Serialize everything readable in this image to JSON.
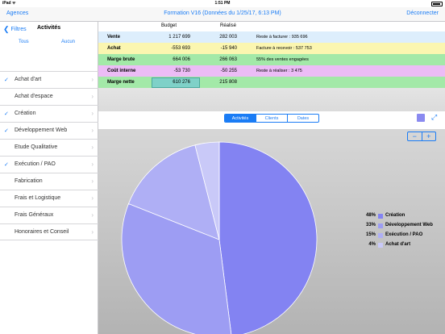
{
  "status": {
    "time": "1:51 PM",
    "wifi": "iPad ᯤ"
  },
  "nav": {
    "left": "Agences",
    "title": "Formation V16 (Données du 1/25/17, 6:13 PM)",
    "right": "Déconnecter"
  },
  "sidebar": {
    "back": "Filtres",
    "title": "Activités",
    "all": "Tous",
    "none": "Aucun",
    "items": [
      {
        "label": "Achat d'art",
        "checked": "✓"
      },
      {
        "label": "Achat d'espace",
        "checked": ""
      },
      {
        "label": "Création",
        "checked": "✓"
      },
      {
        "label": "Développement Web",
        "checked": "✓"
      },
      {
        "label": "Etude Qualitative",
        "checked": ""
      },
      {
        "label": "Exécution / PAO",
        "checked": "✓"
      },
      {
        "label": "Fabrication",
        "checked": ""
      },
      {
        "label": "Frais et Logistique",
        "checked": ""
      },
      {
        "label": "Frais Généraux",
        "checked": ""
      },
      {
        "label": "Honoraires et Conseil",
        "checked": ""
      }
    ]
  },
  "table": {
    "col_budget": "Budget",
    "col_realise": "Réalisé",
    "rows": [
      {
        "name": "Vente",
        "budget": "1 217 699",
        "realise": "282 003",
        "info": "Reste à facturer : 935 696",
        "color": "#ddeefc"
      },
      {
        "name": "Achat",
        "budget": "-553 693",
        "realise": "-15 940",
        "info": "Facture à recevoir : 537 753",
        "color": "#fbf6b0"
      },
      {
        "name": "Marge brute",
        "budget": "664 006",
        "realise": "266 063",
        "info": "55% des ventes engagées",
        "color": "#a3e9a8"
      },
      {
        "name": "Coût interne",
        "budget": "-53 730",
        "realise": "-50 255",
        "info": "Reste à réaliser : 3 475",
        "color": "#ecbcf6"
      },
      {
        "name": "Marge nette",
        "budget": "610 276",
        "realise": "215 808",
        "info": "",
        "color": "#a3e9a8"
      }
    ]
  },
  "tabs": [
    "Activités",
    "Clients",
    "Dates"
  ],
  "zoom": {
    "minus": "−",
    "plus": "+"
  },
  "chart_data": {
    "type": "pie",
    "slices": [
      {
        "label": "Création",
        "percent": 48,
        "color": "#8383f2"
      },
      {
        "label": "Développement Web",
        "percent": 33,
        "color": "#9d9df3"
      },
      {
        "label": "Exécution / PAO",
        "percent": 15,
        "color": "#afaff5"
      },
      {
        "label": "Achat d'art",
        "percent": 4,
        "color": "#c9c9f8"
      }
    ]
  }
}
